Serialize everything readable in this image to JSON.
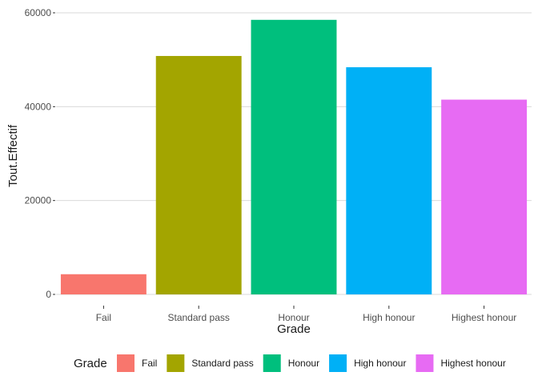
{
  "chart_data": {
    "type": "bar",
    "xlabel": "Grade",
    "ylabel": "Tout.Effectif",
    "categories": [
      "Fail",
      "Standard pass",
      "Honour",
      "High honour",
      "Highest honour"
    ],
    "values": [
      4300,
      50800,
      58500,
      48400,
      41500
    ],
    "colors": [
      "#F8766D",
      "#A3A500",
      "#00BF7D",
      "#00B0F6",
      "#E76BF3"
    ],
    "ylim": [
      0,
      60000
    ],
    "yticks": [
      0,
      20000,
      40000,
      60000
    ],
    "ytick_labels": [
      "0",
      "20000",
      "40000",
      "60000"
    ],
    "grid": true,
    "legend": {
      "title": "Grade",
      "position": "bottom",
      "entries": [
        "Fail",
        "Standard pass",
        "Honour",
        "High honour",
        "Highest honour"
      ]
    }
  }
}
